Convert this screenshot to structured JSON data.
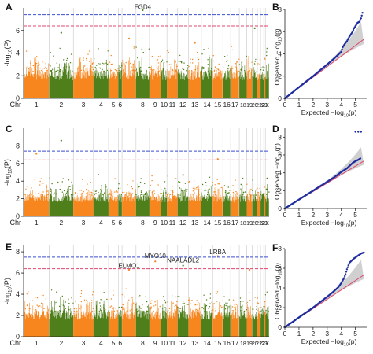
{
  "colors": {
    "orange": "#f7861e",
    "green": "#4e7f1a",
    "blue_line": "#3b4fd0",
    "red_line": "#e0446c",
    "qq_points": "#1f2fa0",
    "qq_line": "#e0446c",
    "qq_band": "#c8c8c8",
    "separator": "#c9c9c9",
    "axis": "#222222"
  },
  "chart_data": [
    {
      "type": "scatter",
      "subtype": "manhattan",
      "panel_label": "A",
      "ylabel": "-log10(P)",
      "xlabel": "Chr",
      "ylim": [
        0,
        8
      ],
      "yticks": [
        0,
        2,
        4,
        6
      ],
      "chromosomes": [
        "1",
        "2",
        "3",
        "4",
        "5",
        "6",
        "7",
        "8",
        "9",
        "10",
        "11",
        "12",
        "13",
        "14",
        "15",
        "16",
        "17",
        "18",
        "19",
        "20",
        "21",
        "22",
        "23",
        "X"
      ],
      "chromosome_labels": [
        "1",
        "2",
        "3",
        "4",
        "5",
        "6",
        "",
        "8",
        "9",
        "10",
        "11",
        "12",
        "13",
        "14",
        "15",
        "16",
        "17",
        "18",
        "19",
        "20",
        "21",
        "22",
        "23",
        "X"
      ],
      "thresholds": [
        {
          "name": "blue",
          "y": 7.4
        },
        {
          "name": "red",
          "y": 6.4
        }
      ],
      "annotations": [
        {
          "label": "FGD4",
          "chr": "8",
          "y": 7.9
        }
      ],
      "top_hits": [
        {
          "chr": "2",
          "y": 5.8
        },
        {
          "chr": "8",
          "y": 7.8
        },
        {
          "chr": "7",
          "y": 5.3
        },
        {
          "chr": "13",
          "y": 4.9
        },
        {
          "chr": "20",
          "y": 6.2
        }
      ]
    },
    {
      "type": "scatter",
      "subtype": "qq",
      "panel_label": "B",
      "xlabel": "Expected -log10(p)",
      "ylabel": "Observed -log10(p)",
      "xlim": [
        0,
        5.8
      ],
      "ylim": [
        0,
        8
      ],
      "xticks": [
        0,
        1,
        2,
        3,
        4,
        5
      ],
      "yticks": [
        0,
        2,
        4,
        6,
        8
      ],
      "points": [
        [
          0,
          0
        ],
        [
          1,
          1.0
        ],
        [
          2,
          2.0
        ],
        [
          3,
          3.05
        ],
        [
          3.5,
          3.6
        ],
        [
          3.8,
          3.95
        ],
        [
          4.0,
          4.2
        ],
        [
          4.1,
          4.6
        ],
        [
          4.25,
          4.9
        ],
        [
          4.4,
          5.15
        ],
        [
          4.55,
          5.5
        ],
        [
          4.7,
          5.8
        ],
        [
          4.8,
          6.0
        ],
        [
          4.9,
          6.3
        ],
        [
          5.0,
          6.5
        ],
        [
          5.15,
          6.8
        ],
        [
          5.3,
          6.9
        ],
        [
          5.4,
          7.2
        ],
        [
          5.5,
          7.7
        ]
      ]
    },
    {
      "type": "scatter",
      "subtype": "manhattan",
      "panel_label": "C",
      "ylabel": "-log10(P)",
      "xlabel": "Chr",
      "ylim": [
        0,
        10
      ],
      "yticks": [
        0,
        2,
        4,
        6,
        8
      ],
      "chromosomes": [
        "1",
        "2",
        "3",
        "4",
        "5",
        "6",
        "7",
        "8",
        "9",
        "10",
        "11",
        "12",
        "13",
        "14",
        "15",
        "16",
        "17",
        "18",
        "19",
        "20",
        "21",
        "22",
        "23",
        "X"
      ],
      "chromosome_labels": [
        "1",
        "2",
        "3",
        "4",
        "5",
        "6",
        "",
        "8",
        "9",
        "10",
        "11",
        "12",
        "13",
        "14",
        "15",
        "16",
        "17",
        "18",
        "19",
        "20",
        "21",
        "22",
        "23",
        "X"
      ],
      "thresholds": [
        {
          "name": "blue",
          "y": 7.4
        },
        {
          "name": "red",
          "y": 6.4
        }
      ],
      "annotations": [],
      "top_hits": [
        {
          "chr": "2",
          "y": 8.6
        },
        {
          "chr": "1",
          "y": 7.1
        },
        {
          "chr": "15",
          "y": 6.5
        },
        {
          "chr": "12",
          "y": 4.7
        },
        {
          "chr": "X",
          "y": 4.3
        }
      ]
    },
    {
      "type": "scatter",
      "subtype": "qq",
      "panel_label": "D",
      "xlabel": "Expected -log10(p)",
      "ylabel": "Observed -log10(p)",
      "xlim": [
        0,
        5.8
      ],
      "ylim": [
        0,
        9
      ],
      "xticks": [
        0,
        1,
        2,
        3,
        4,
        5
      ],
      "yticks": [
        0,
        2,
        4,
        6,
        8
      ],
      "points": [
        [
          0,
          0
        ],
        [
          1,
          1.0
        ],
        [
          2,
          2.0
        ],
        [
          3,
          3.0
        ],
        [
          3.5,
          3.5
        ],
        [
          3.8,
          3.85
        ],
        [
          4.0,
          4.1
        ],
        [
          4.2,
          4.3
        ],
        [
          4.4,
          4.5
        ],
        [
          4.6,
          4.8
        ],
        [
          4.8,
          5.1
        ],
        [
          5.0,
          5.3
        ],
        [
          5.2,
          5.45
        ],
        [
          5.35,
          5.6
        ],
        [
          5.0,
          8.6
        ],
        [
          5.2,
          8.6
        ],
        [
          5.4,
          8.6
        ]
      ]
    },
    {
      "type": "scatter",
      "subtype": "manhattan",
      "panel_label": "E",
      "ylabel": "-log10(P)",
      "xlabel": "Chr",
      "ylim": [
        0,
        8.6
      ],
      "yticks": [
        0,
        2,
        4,
        6,
        8
      ],
      "chromosomes": [
        "1",
        "2",
        "3",
        "4",
        "5",
        "6",
        "7",
        "8",
        "9",
        "10",
        "11",
        "12",
        "13",
        "14",
        "15",
        "16",
        "17",
        "18",
        "19",
        "20",
        "21",
        "22",
        "23",
        "X"
      ],
      "chromosome_labels": [
        "1",
        "2",
        "3",
        "4",
        "5",
        "6",
        "",
        "8",
        "9",
        "10",
        "11",
        "12",
        "13",
        "14",
        "15",
        "16",
        "17",
        "18",
        "19",
        "20",
        "21",
        "22",
        "23",
        "X"
      ],
      "thresholds": [
        {
          "name": "blue",
          "y": 7.5
        },
        {
          "name": "red",
          "y": 6.4
        }
      ],
      "annotations": [
        {
          "label": "ELMO1",
          "chr": "7",
          "y": 6.5
        },
        {
          "label": "MYO10",
          "chr": "9",
          "y": 7.4
        },
        {
          "label": "NAALADL2",
          "chr": "12",
          "y": 7.0
        },
        {
          "label": "LRBA",
          "chr": "15",
          "y": 7.8
        }
      ],
      "top_hits": [
        {
          "chr": "7",
          "y": 6.3
        },
        {
          "chr": "9",
          "y": 7.1
        },
        {
          "chr": "12",
          "y": 6.7
        },
        {
          "chr": "15",
          "y": 7.6
        },
        {
          "chr": "19",
          "y": 6.3
        }
      ]
    },
    {
      "type": "scatter",
      "subtype": "qq",
      "panel_label": "F",
      "xlabel": "Expected -log10(p)",
      "ylabel": "Observed -log10(p)",
      "xlim": [
        0,
        5.8
      ],
      "ylim": [
        0,
        8
      ],
      "xticks": [
        0,
        1,
        2,
        3,
        4,
        5
      ],
      "yticks": [
        0,
        2,
        4,
        6,
        8
      ],
      "points": [
        [
          0,
          0
        ],
        [
          1,
          1.0
        ],
        [
          2,
          2.0
        ],
        [
          3,
          3.1
        ],
        [
          3.5,
          3.7
        ],
        [
          3.8,
          4.1
        ],
        [
          4.0,
          4.5
        ],
        [
          4.2,
          5.0
        ],
        [
          4.3,
          5.4
        ],
        [
          4.4,
          5.9
        ],
        [
          4.5,
          6.3
        ],
        [
          4.6,
          6.6
        ],
        [
          4.75,
          6.8
        ],
        [
          4.9,
          7.0
        ],
        [
          5.1,
          7.2
        ],
        [
          5.4,
          7.5
        ],
        [
          5.6,
          7.6
        ]
      ]
    }
  ]
}
